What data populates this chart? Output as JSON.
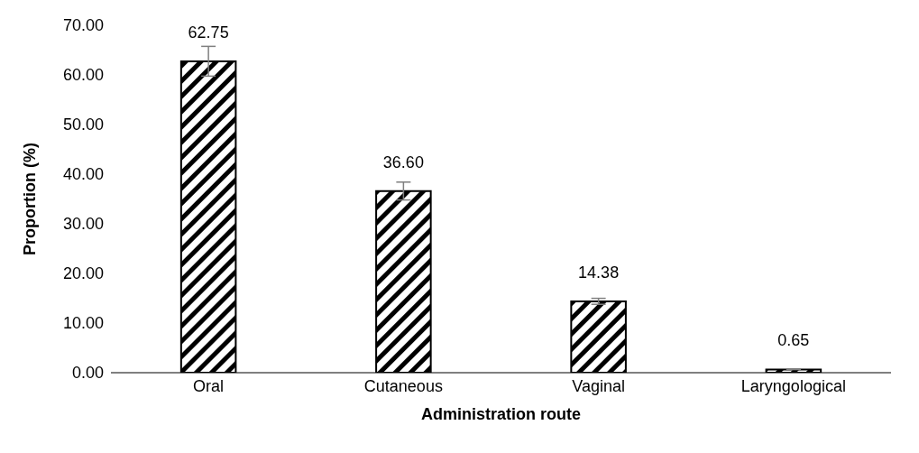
{
  "chart_data": {
    "type": "bar",
    "xlabel": "Administration route",
    "ylabel": "Proportion (%)",
    "categories": [
      "Oral",
      "Cutaneous",
      "Vaginal",
      "Laryngological"
    ],
    "values": [
      62.75,
      36.6,
      14.38,
      0.65
    ],
    "errors": [
      3,
      1.8,
      0.6,
      null
    ],
    "color": "#000000",
    "value_labels": [
      "62.75",
      "36.60",
      "14.38",
      "0.65"
    ],
    "ylim": [
      0,
      70
    ],
    "yticks": [
      {
        "value": 0,
        "label": "0.00"
      },
      {
        "value": 10,
        "label": "10.00"
      },
      {
        "value": 20,
        "label": "20.00"
      },
      {
        "value": 30,
        "label": "30.00"
      },
      {
        "value": 40,
        "label": "40.00"
      },
      {
        "value": 50,
        "label": "50.00"
      },
      {
        "value": 60,
        "label": "60.00"
      },
      {
        "value": 70,
        "label": "70.00"
      }
    ],
    "grid": false,
    "legend": false
  }
}
